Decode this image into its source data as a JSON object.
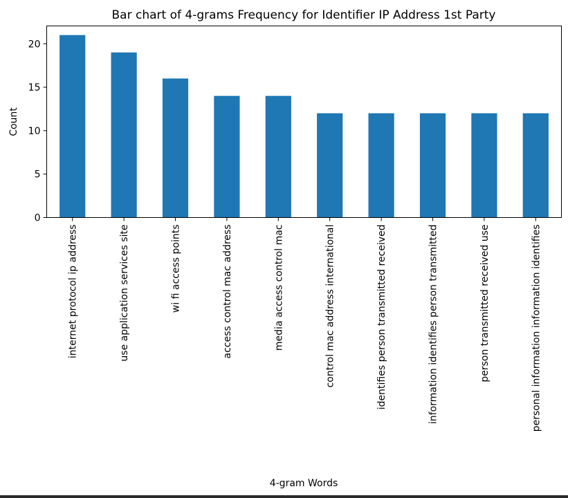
{
  "chart_data": {
    "type": "bar",
    "title": "Bar chart of 4-grams Frequency for Identifier IP Address 1st Party",
    "xlabel": "4-gram Words",
    "ylabel": "Count",
    "categories": [
      "internet protocol ip address",
      "use application services site",
      "wi fi access points",
      "access control mac address",
      "media access control mac",
      "control mac address international",
      "identifies person transmitted received",
      "information identifies person transmitted",
      "person transmitted received use",
      "personal information information identifies"
    ],
    "values": [
      21,
      19,
      16,
      14,
      14,
      12,
      12,
      12,
      12,
      12
    ],
    "ylim": [
      0,
      22.05
    ],
    "yticks": [
      0,
      5,
      10,
      15,
      20
    ],
    "bar_color": "#1f77b4",
    "grid": false,
    "legend": "none"
  }
}
